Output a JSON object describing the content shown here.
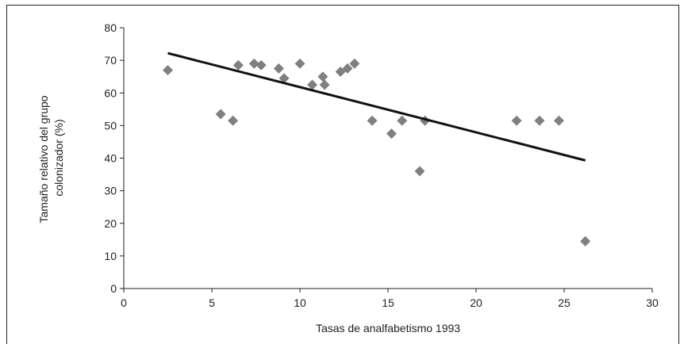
{
  "chart_data": {
    "type": "scatter",
    "xlabel": "Tasas de analfabetismo 1993",
    "ylabel_lines": [
      "Tamaño relativo del grupo",
      "colonizador (%)"
    ],
    "xlim": [
      0,
      30
    ],
    "ylim": [
      0,
      80
    ],
    "xticks": [
      0,
      5,
      10,
      15,
      20,
      25,
      30
    ],
    "yticks": [
      0,
      10,
      20,
      30,
      40,
      50,
      60,
      70,
      80
    ],
    "grid": false,
    "marker_color": "#808080",
    "trendline_color": "#111111",
    "series": [
      {
        "points": [
          [
            2.5,
            67
          ],
          [
            5.5,
            53.5
          ],
          [
            6.2,
            51.5
          ],
          [
            6.5,
            68.5
          ],
          [
            7.4,
            69
          ],
          [
            7.8,
            68.5
          ],
          [
            8.8,
            67.5
          ],
          [
            9.1,
            64.5
          ],
          [
            10.0,
            69
          ],
          [
            10.7,
            62.5
          ],
          [
            11.3,
            65
          ],
          [
            11.4,
            62.5
          ],
          [
            12.3,
            66.5
          ],
          [
            12.7,
            67.5
          ],
          [
            13.1,
            69
          ],
          [
            14.1,
            51.5
          ],
          [
            15.2,
            47.5
          ],
          [
            15.8,
            51.5
          ],
          [
            16.8,
            36
          ],
          [
            17.1,
            51.5
          ],
          [
            22.3,
            51.5
          ],
          [
            23.6,
            51.5
          ],
          [
            24.7,
            51.5
          ],
          [
            26.2,
            14.5
          ]
        ]
      }
    ],
    "trendline": {
      "x": [
        2.5,
        26.2
      ],
      "y": [
        72.2,
        39.3
      ]
    }
  }
}
